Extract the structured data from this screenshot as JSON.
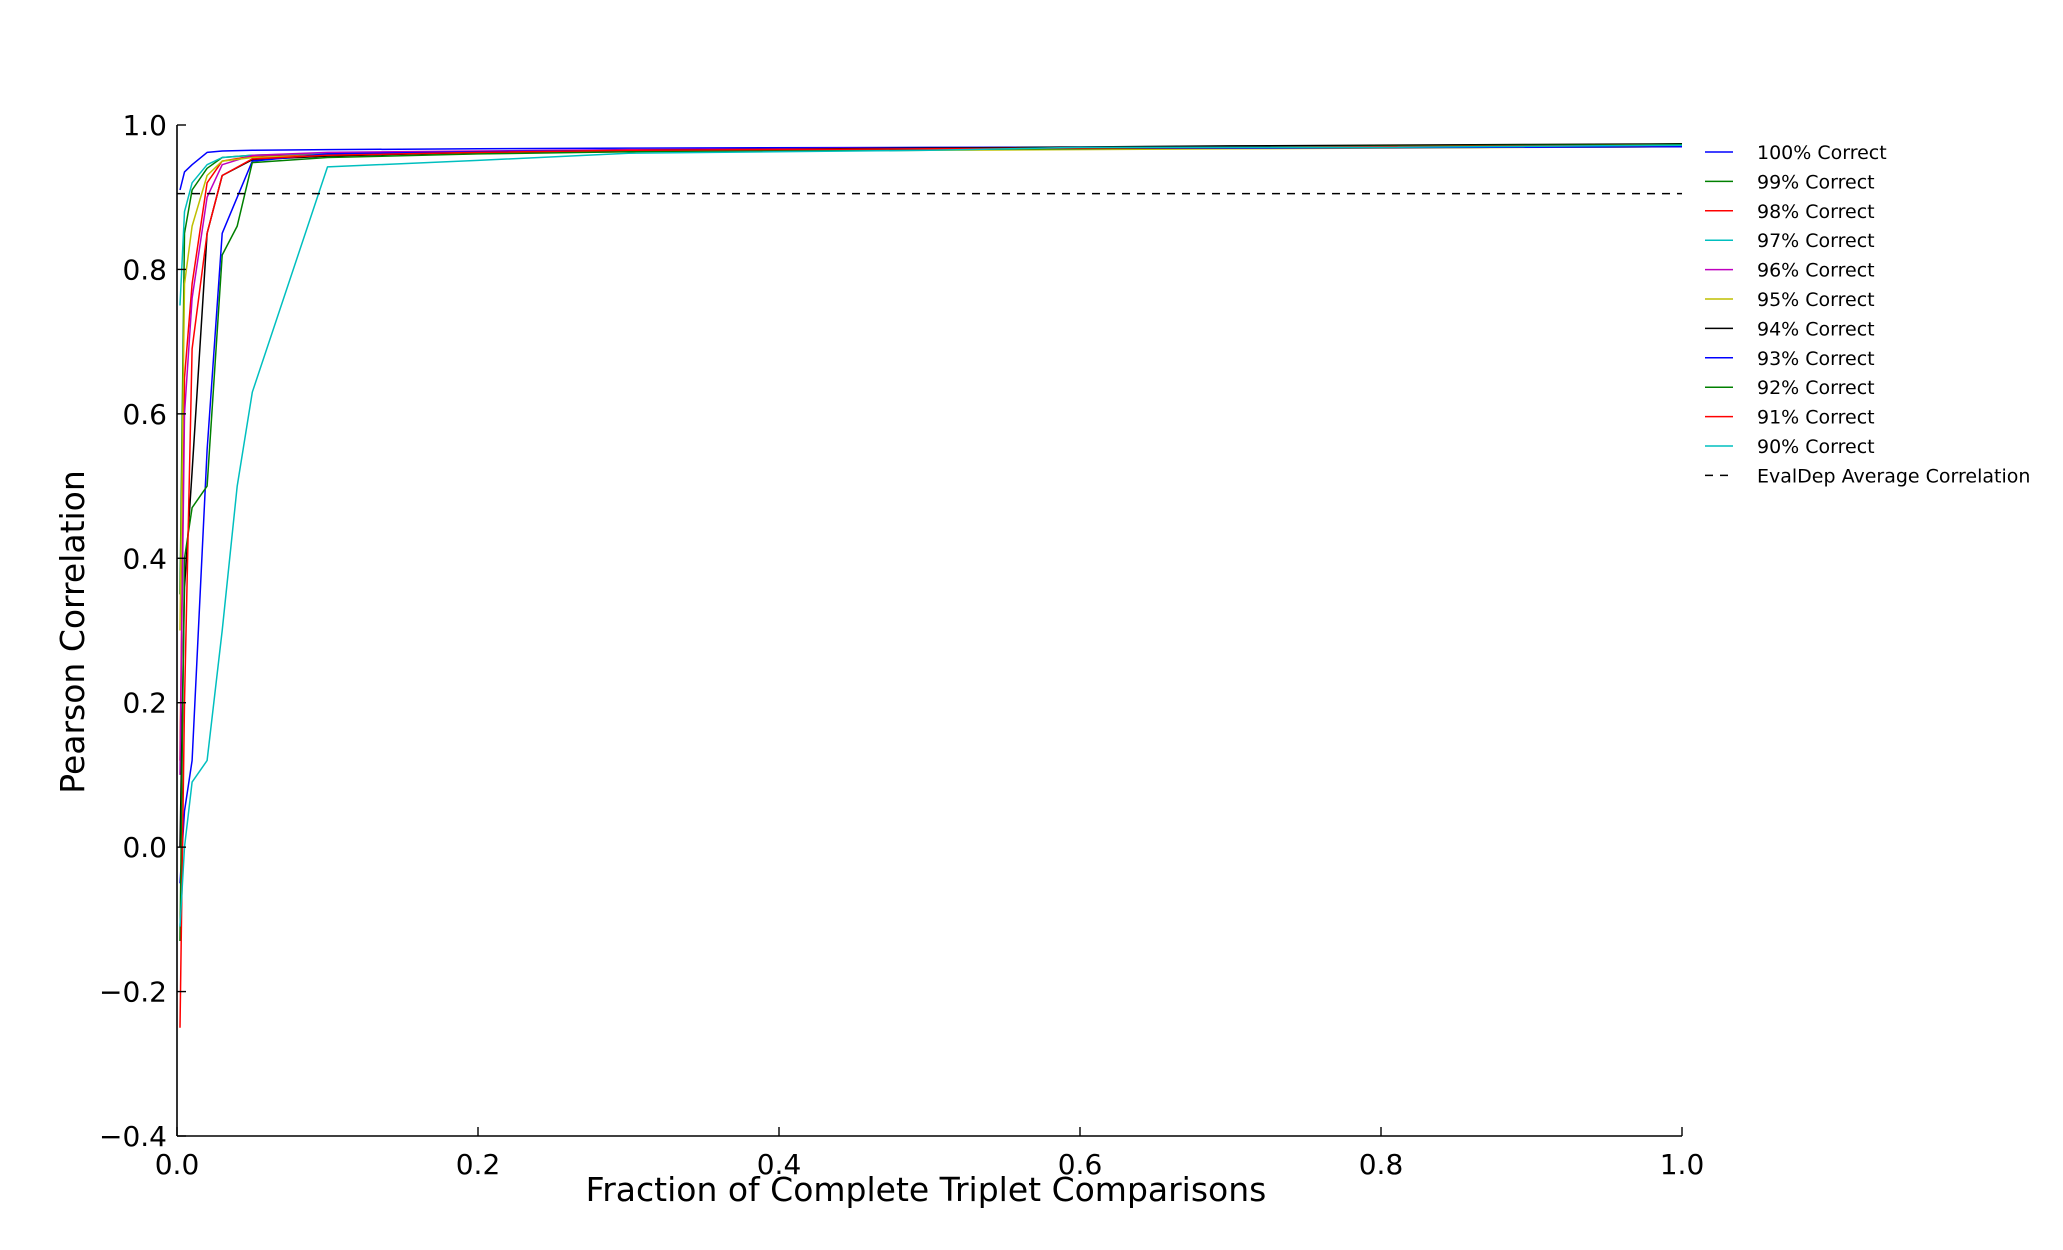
{
  "chart_data": {
    "type": "line",
    "title": "",
    "xlabel": "Fraction of Complete Triplet Comparisons",
    "ylabel": "Pearson Correlation",
    "xlim": [
      0.0,
      1.0
    ],
    "ylim": [
      -0.4,
      1.0
    ],
    "xticks": [
      0.0,
      0.2,
      0.4,
      0.6,
      0.8,
      1.0
    ],
    "xtick_labels": [
      "0.0",
      "0.2",
      "0.4",
      "0.6",
      "0.8",
      "1.0"
    ],
    "yticks": [
      -0.4,
      -0.2,
      0.0,
      0.2,
      0.4,
      0.6,
      0.8,
      1.0
    ],
    "ytick_labels": [
      "−0.4",
      "−0.2",
      "0.0",
      "0.2",
      "0.4",
      "0.6",
      "0.8",
      "1.0"
    ],
    "grid": false,
    "legend_position": "outside-right-top",
    "series": [
      {
        "name": "100% Correct",
        "color": "#0000ff",
        "dashed": false,
        "x": [
          0.002,
          0.005,
          0.01,
          0.02,
          0.03,
          0.05,
          0.1,
          0.2,
          0.3,
          0.5,
          0.7,
          1.0
        ],
        "y": [
          0.91,
          0.935,
          0.945,
          0.962,
          0.964,
          0.965,
          0.966,
          0.967,
          0.968,
          0.969,
          0.97,
          0.972
        ]
      },
      {
        "name": "99% Correct",
        "color": "#008000",
        "dashed": false,
        "x": [
          0.002,
          0.005,
          0.01,
          0.02,
          0.03,
          0.05,
          0.1,
          0.2,
          0.3,
          0.5,
          0.7,
          1.0
        ],
        "y": [
          0.35,
          0.85,
          0.91,
          0.94,
          0.955,
          0.958,
          0.96,
          0.962,
          0.964,
          0.966,
          0.968,
          0.97
        ]
      },
      {
        "name": "98% Correct",
        "color": "#ff0000",
        "dashed": false,
        "x": [
          0.002,
          0.005,
          0.01,
          0.02,
          0.03,
          0.05,
          0.1,
          0.2,
          0.3,
          0.5,
          0.7,
          1.0
        ],
        "y": [
          0.12,
          0.65,
          0.78,
          0.92,
          0.95,
          0.957,
          0.96,
          0.962,
          0.964,
          0.966,
          0.968,
          0.97
        ]
      },
      {
        "name": "97% Correct",
        "color": "#00bfbf",
        "dashed": false,
        "x": [
          0.002,
          0.005,
          0.01,
          0.02,
          0.03,
          0.05,
          0.1,
          0.2,
          0.3,
          0.5,
          0.7,
          1.0
        ],
        "y": [
          0.75,
          0.88,
          0.92,
          0.945,
          0.955,
          0.958,
          0.961,
          0.963,
          0.965,
          0.967,
          0.968,
          0.971
        ]
      },
      {
        "name": "96% Correct",
        "color": "#bf00bf",
        "dashed": false,
        "x": [
          0.002,
          0.005,
          0.01,
          0.02,
          0.03,
          0.05,
          0.1,
          0.2,
          0.3,
          0.5,
          0.7,
          1.0
        ],
        "y": [
          0.1,
          0.6,
          0.76,
          0.9,
          0.945,
          0.958,
          0.962,
          0.964,
          0.966,
          0.968,
          0.969,
          0.971
        ]
      },
      {
        "name": "95% Correct",
        "color": "#bfbf00",
        "dashed": false,
        "x": [
          0.002,
          0.005,
          0.01,
          0.02,
          0.03,
          0.05,
          0.1,
          0.2,
          0.3,
          0.5,
          0.7,
          1.0
        ],
        "y": [
          0.3,
          0.78,
          0.86,
          0.93,
          0.95,
          0.955,
          0.958,
          0.961,
          0.963,
          0.965,
          0.967,
          0.97
        ]
      },
      {
        "name": "94% Correct",
        "color": "#000000",
        "dashed": false,
        "x": [
          0.002,
          0.005,
          0.01,
          0.02,
          0.03,
          0.05,
          0.1,
          0.2,
          0.3,
          0.5,
          0.7,
          0.9,
          1.0
        ],
        "y": [
          0.0,
          0.36,
          0.52,
          0.85,
          0.93,
          0.952,
          0.957,
          0.962,
          0.965,
          0.968,
          0.971,
          0.973,
          0.974
        ]
      },
      {
        "name": "93% Correct",
        "color": "#0000ff",
        "dashed": false,
        "x": [
          0.002,
          0.005,
          0.01,
          0.02,
          0.03,
          0.05,
          0.1,
          0.2,
          0.3,
          0.5,
          0.7,
          1.0
        ],
        "y": [
          -0.05,
          0.05,
          0.12,
          0.55,
          0.85,
          0.95,
          0.96,
          0.963,
          0.965,
          0.967,
          0.968,
          0.97
        ]
      },
      {
        "name": "92% Correct",
        "color": "#008000",
        "dashed": false,
        "x": [
          0.002,
          0.005,
          0.01,
          0.02,
          0.03,
          0.04,
          0.05,
          0.1,
          0.2,
          0.3,
          0.5,
          0.7,
          0.9,
          1.0
        ],
        "y": [
          -0.13,
          0.4,
          0.47,
          0.5,
          0.82,
          0.86,
          0.948,
          0.955,
          0.96,
          0.963,
          0.966,
          0.969,
          0.972,
          0.973
        ]
      },
      {
        "name": "91% Correct",
        "color": "#ff0000",
        "dashed": false,
        "x": [
          0.002,
          0.005,
          0.01,
          0.02,
          0.03,
          0.05,
          0.1,
          0.2,
          0.3,
          0.5,
          0.7,
          1.0
        ],
        "y": [
          -0.25,
          0.2,
          0.69,
          0.85,
          0.93,
          0.953,
          0.958,
          0.962,
          0.965,
          0.967,
          0.969,
          0.972
        ]
      },
      {
        "name": "90% Correct",
        "color": "#00bfbf",
        "dashed": false,
        "x": [
          0.002,
          0.005,
          0.01,
          0.02,
          0.03,
          0.04,
          0.05,
          0.1,
          0.2,
          0.3,
          0.5,
          0.6,
          0.8,
          1.0
        ],
        "y": [
          -0.11,
          0.0,
          0.09,
          0.12,
          0.3,
          0.5,
          0.63,
          0.942,
          0.951,
          0.961,
          0.965,
          0.969,
          0.969,
          0.972
        ]
      },
      {
        "name": "EvalDep Average Correlation",
        "color": "#000000",
        "dashed": true,
        "x": [
          0.0,
          1.0
        ],
        "y": [
          0.905,
          0.905
        ]
      }
    ]
  }
}
